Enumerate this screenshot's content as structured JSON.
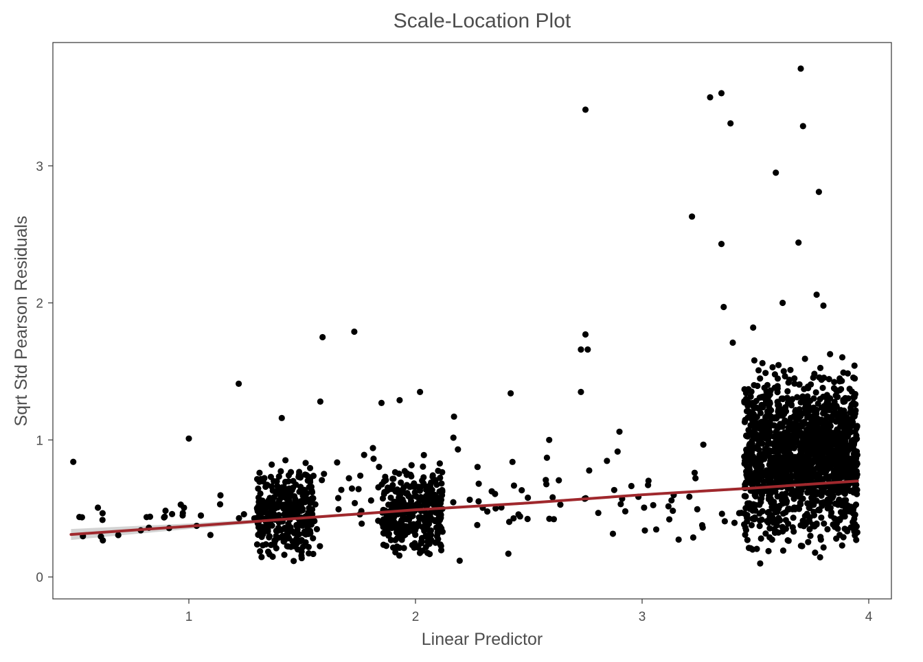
{
  "chart_data": {
    "type": "scatter",
    "title": "Scale-Location Plot",
    "xlabel": "Linear Predictor",
    "ylabel": "Sqrt Std Pearson Residuals",
    "xlim": [
      0.4,
      4.1
    ],
    "ylim": [
      -0.16,
      3.9
    ],
    "xticks": [
      1,
      2,
      3,
      4
    ],
    "yticks": [
      0,
      1,
      2,
      3
    ],
    "grid": false,
    "legend": "none",
    "point_color": "#000000",
    "trend_color": "#a0282d",
    "band_color": "#cccccc",
    "outliers": [
      {
        "x": 0.49,
        "y": 0.84
      },
      {
        "x": 1.0,
        "y": 1.01
      },
      {
        "x": 1.22,
        "y": 1.41
      },
      {
        "x": 1.41,
        "y": 1.16
      },
      {
        "x": 1.58,
        "y": 1.28
      },
      {
        "x": 1.59,
        "y": 1.75
      },
      {
        "x": 1.73,
        "y": 1.79
      },
      {
        "x": 1.85,
        "y": 1.27
      },
      {
        "x": 1.93,
        "y": 1.29
      },
      {
        "x": 2.02,
        "y": 1.35
      },
      {
        "x": 2.17,
        "y": 1.17
      },
      {
        "x": 2.42,
        "y": 1.34
      },
      {
        "x": 2.59,
        "y": 1.0
      },
      {
        "x": 2.58,
        "y": 0.87
      },
      {
        "x": 2.73,
        "y": 1.35
      },
      {
        "x": 2.75,
        "y": 3.41
      },
      {
        "x": 2.75,
        "y": 1.77
      },
      {
        "x": 2.73,
        "y": 1.66
      },
      {
        "x": 2.76,
        "y": 1.66
      },
      {
        "x": 2.9,
        "y": 1.06
      },
      {
        "x": 3.22,
        "y": 2.63
      },
      {
        "x": 3.3,
        "y": 3.5
      },
      {
        "x": 3.35,
        "y": 3.53
      },
      {
        "x": 3.39,
        "y": 3.31
      },
      {
        "x": 3.35,
        "y": 2.43
      },
      {
        "x": 3.36,
        "y": 1.97
      },
      {
        "x": 3.4,
        "y": 1.71
      },
      {
        "x": 3.59,
        "y": 2.95
      },
      {
        "x": 3.62,
        "y": 2.0
      },
      {
        "x": 3.69,
        "y": 2.44
      },
      {
        "x": 3.7,
        "y": 3.71
      },
      {
        "x": 3.71,
        "y": 3.29
      },
      {
        "x": 3.78,
        "y": 2.81
      },
      {
        "x": 3.77,
        "y": 2.06
      },
      {
        "x": 3.8,
        "y": 1.98
      },
      {
        "x": 3.49,
        "y": 1.82
      }
    ],
    "clusters": [
      {
        "x_min": 0.5,
        "x_max": 1.3,
        "y_min": 0.1,
        "y_max": 0.7,
        "count": 30
      },
      {
        "x_min": 1.3,
        "x_max": 1.55,
        "y_min": 0.04,
        "y_max": 0.9,
        "count": 320
      },
      {
        "x_min": 1.55,
        "x_max": 1.85,
        "y_min": 0.1,
        "y_max": 1.1,
        "count": 25
      },
      {
        "x_min": 1.85,
        "x_max": 2.12,
        "y_min": 0.02,
        "y_max": 0.92,
        "count": 330
      },
      {
        "x_min": 2.15,
        "x_max": 3.45,
        "y_min": 0.05,
        "y_max": 1.1,
        "count": 70
      },
      {
        "x_min": 3.45,
        "x_max": 3.95,
        "y_min": 0.04,
        "y_max": 1.7,
        "count": 1500
      }
    ],
    "trend": {
      "x": [
        0.48,
        1.0,
        1.5,
        2.0,
        2.5,
        3.0,
        3.5,
        3.95
      ],
      "y": [
        0.31,
        0.37,
        0.43,
        0.49,
        0.54,
        0.6,
        0.65,
        0.7
      ],
      "band_low": [
        0.27,
        0.35,
        0.42,
        0.48,
        0.53,
        0.59,
        0.64,
        0.67
      ],
      "band_high": [
        0.35,
        0.39,
        0.44,
        0.5,
        0.55,
        0.61,
        0.66,
        0.73
      ]
    }
  }
}
